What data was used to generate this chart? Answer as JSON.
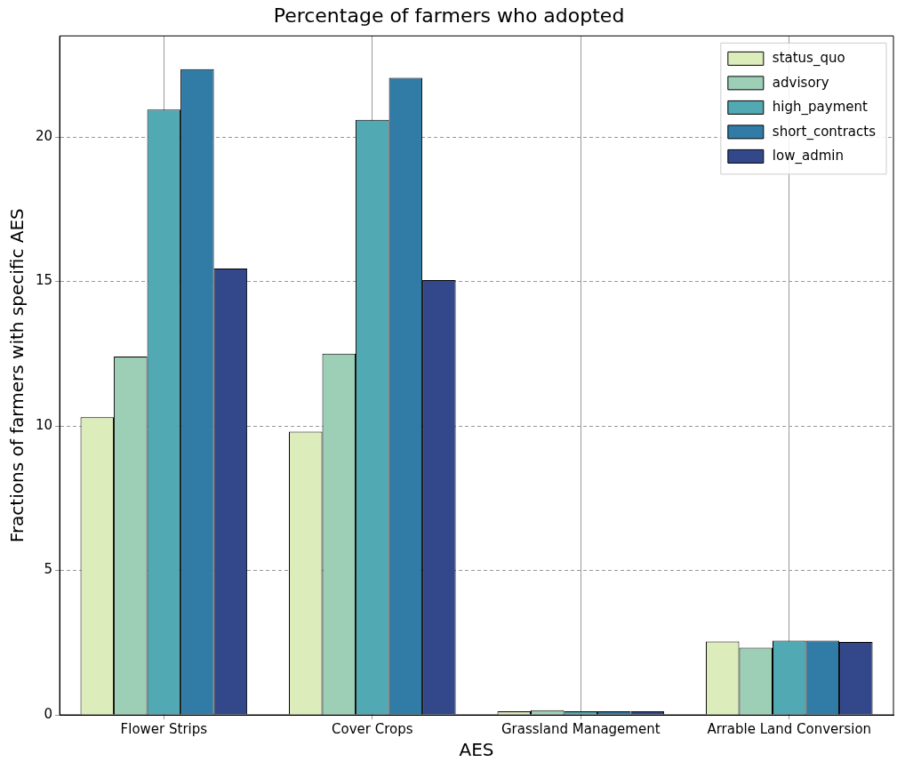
{
  "chart_data": {
    "type": "bar",
    "title": "Percentage of farmers who adopted",
    "xlabel": "AES",
    "ylabel": "Fractions of farmers with specific AES",
    "categories": [
      "Flower Strips",
      "Cover Crops",
      "Grassland Management",
      "Arrable Land Conversion"
    ],
    "series": [
      {
        "name": "status_quo",
        "color": "#ddecbb",
        "values": [
          10.3,
          9.8,
          0.12,
          2.54
        ]
      },
      {
        "name": "advisory",
        "color": "#9ccfb6",
        "values": [
          12.4,
          12.5,
          0.16,
          2.32
        ]
      },
      {
        "name": "high_payment",
        "color": "#51a9b4",
        "values": [
          20.95,
          20.6,
          0.12,
          2.57
        ]
      },
      {
        "name": "short_contracts",
        "color": "#317ca6",
        "values": [
          22.35,
          22.05,
          0.12,
          2.57
        ]
      },
      {
        "name": "low_admin",
        "color": "#33488b",
        "values": [
          15.45,
          15.05,
          0.12,
          2.52
        ]
      }
    ],
    "ylim": [
      0,
      23.5
    ],
    "yticks": [
      0,
      5,
      10,
      15,
      20
    ],
    "grid": true,
    "legend": "top right"
  }
}
